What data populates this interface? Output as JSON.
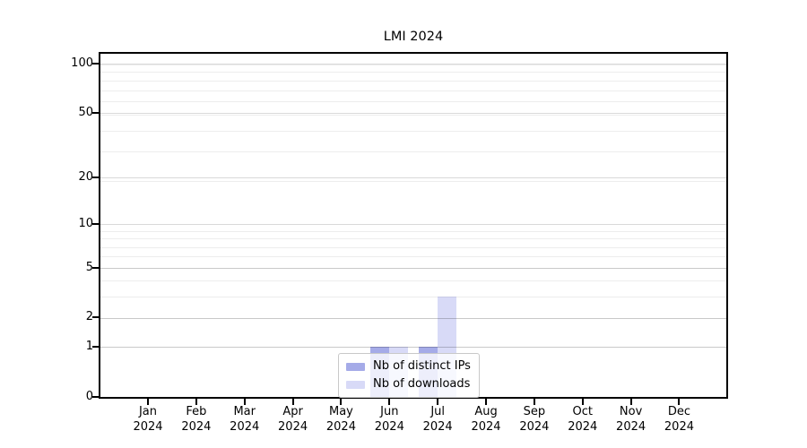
{
  "figure": {
    "background": "#ffffff",
    "text_color": "#000000"
  },
  "chart_data": {
    "type": "bar",
    "title": "LMI 2024",
    "xlabel": "",
    "ylabel": "",
    "year": "2024",
    "months": [
      "Jan",
      "Feb",
      "Mar",
      "Apr",
      "May",
      "Jun",
      "Jul",
      "Aug",
      "Sep",
      "Oct",
      "Nov",
      "Dec"
    ],
    "categories": [
      "Jan 2024",
      "Feb 2024",
      "Mar 2024",
      "Apr 2024",
      "May 2024",
      "Jun 2024",
      "Jul 2024",
      "Aug 2024",
      "Sep 2024",
      "Oct 2024",
      "Nov 2024",
      "Dec 2024"
    ],
    "series": [
      {
        "name": "Nb of distinct IPs",
        "color": "#a5abe8",
        "values": [
          0,
          0,
          0,
          0,
          0,
          1,
          1,
          0,
          0,
          0,
          0,
          0
        ]
      },
      {
        "name": "Nb of downloads",
        "color": "#d8daf7",
        "values": [
          0,
          0,
          0,
          0,
          0,
          1,
          3,
          0,
          0,
          0,
          0,
          0
        ]
      }
    ],
    "yscale": "symlog (log10 of value+1)",
    "ylim": [
      0,
      115
    ],
    "yticks": [
      0,
      1,
      2,
      5,
      10,
      20,
      50,
      100
    ],
    "minor_grid_values_plus1": [
      2,
      3,
      4,
      5,
      6,
      7,
      8,
      9,
      10,
      20,
      30,
      40,
      50,
      60,
      70,
      80,
      90,
      100
    ],
    "grid": "horizontal, major and minor, no vertical gridlines",
    "legend_position": "lower center, overlapping Jun/Jul bars",
    "colors": {
      "spine": "#000000",
      "grid_major": "rgba(0,0,0,0.15)",
      "grid_minor": "rgba(0,0,0,0.07)",
      "legend_border": "#c9c9c9",
      "legend_background": "rgba(255,255,255,0.8)"
    }
  }
}
